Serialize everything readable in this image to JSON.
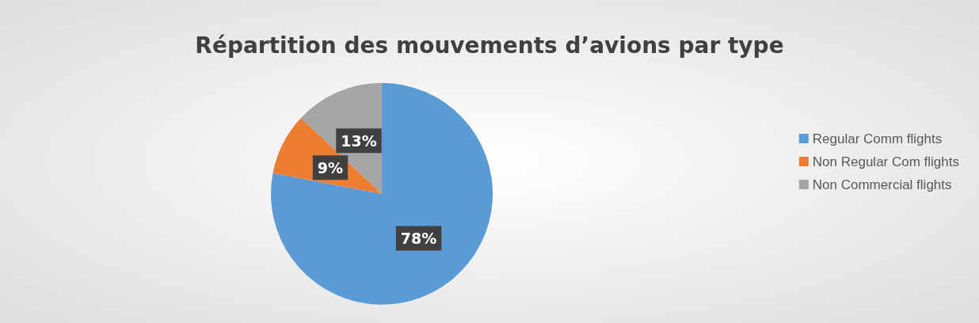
{
  "chart_data": {
    "type": "pie",
    "title": "Répartition des mouvements d’avions par type",
    "categories": [
      "Regular Comm flights",
      "Non Regular Com flights",
      "Non Commercial flights"
    ],
    "values": [
      78,
      9,
      13
    ],
    "colors": [
      "#5b9bd5",
      "#ed7d31",
      "#a5a5a5"
    ],
    "value_labels": [
      "78%",
      "9%",
      "13%"
    ],
    "legend": "right"
  }
}
